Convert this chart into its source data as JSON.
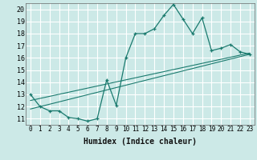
{
  "title": "",
  "xlabel": "Humidex (Indice chaleur)",
  "ylabel": "",
  "bg_color": "#cce9e7",
  "grid_color": "#ffffff",
  "line_color": "#1a7a6e",
  "xlim": [
    -0.5,
    23.5
  ],
  "ylim": [
    10.5,
    20.5
  ],
  "yticks": [
    11,
    12,
    13,
    14,
    15,
    16,
    17,
    18,
    19,
    20
  ],
  "xticks": [
    0,
    1,
    2,
    3,
    4,
    5,
    6,
    7,
    8,
    9,
    10,
    11,
    12,
    13,
    14,
    15,
    16,
    17,
    18,
    19,
    20,
    21,
    22,
    23
  ],
  "main_x": [
    0,
    1,
    2,
    3,
    4,
    5,
    6,
    7,
    8,
    9,
    10,
    11,
    12,
    13,
    14,
    15,
    16,
    17,
    18,
    19,
    20,
    21,
    22,
    23
  ],
  "main_y": [
    13.0,
    12.0,
    11.65,
    11.65,
    11.1,
    11.0,
    10.8,
    11.0,
    14.2,
    12.1,
    16.0,
    18.0,
    18.0,
    18.4,
    19.5,
    20.4,
    19.2,
    18.0,
    19.3,
    16.6,
    16.8,
    17.1,
    16.5,
    16.3
  ],
  "line2_x": [
    0,
    23
  ],
  "line2_y": [
    11.8,
    16.3
  ],
  "line3_x": [
    0,
    23
  ],
  "line3_y": [
    12.5,
    16.4
  ],
  "xlabel_fontsize": 7,
  "tick_fontsize": 5.5
}
